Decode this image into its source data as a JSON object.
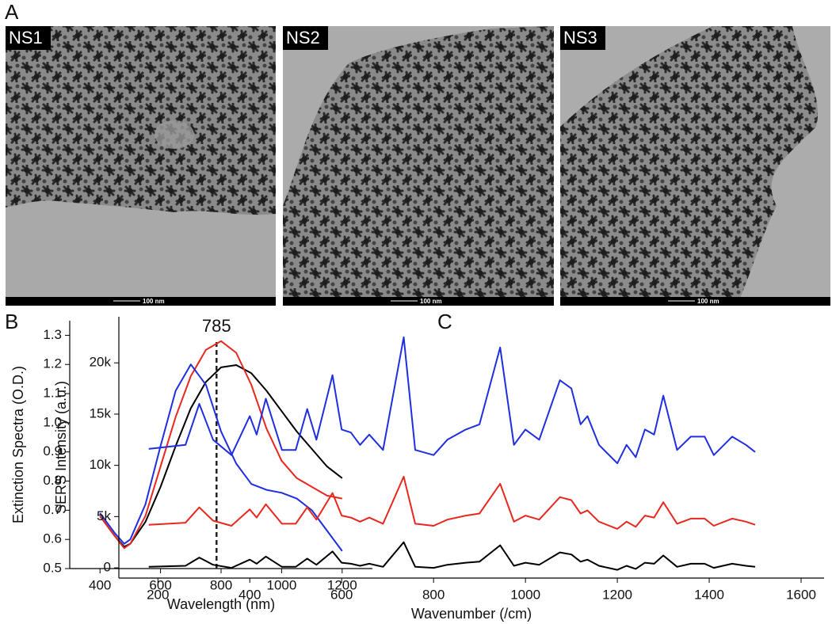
{
  "panel_labels": [
    "A",
    "B",
    "C"
  ],
  "images": [
    {
      "label": "NS1",
      "scale_bar": "100 nm"
    },
    {
      "label": "NS2",
      "scale_bar": "100 nm"
    },
    {
      "label": "NS3",
      "scale_bar": "100 nm"
    }
  ],
  "chart_data": [
    {
      "type": "line",
      "x_label": "Wavelength (nm)",
      "y_label": "Extinction Spectra (O.D.)",
      "x": [
        400,
        450,
        480,
        500,
        550,
        600,
        650,
        700,
        750,
        800,
        850,
        900,
        950,
        1000,
        1050,
        1100,
        1150,
        1200
      ],
      "series": [
        {
          "color": "#000000",
          "values": [
            0.68,
            0.61,
            0.575,
            0.585,
            0.66,
            0.78,
            0.92,
            1.05,
            1.14,
            1.19,
            1.198,
            1.17,
            1.11,
            1.04,
            0.97,
            0.91,
            0.85,
            0.81
          ]
        },
        {
          "color": "#e8281e",
          "values": [
            0.68,
            0.61,
            0.57,
            0.585,
            0.68,
            0.85,
            1.02,
            1.16,
            1.25,
            1.28,
            1.24,
            1.13,
            0.98,
            0.87,
            0.81,
            0.78,
            0.75,
            0.74
          ]
        },
        {
          "color": "#1f2ee0",
          "values": [
            0.69,
            0.62,
            0.585,
            0.6,
            0.72,
            0.92,
            1.11,
            1.2,
            1.13,
            0.97,
            0.86,
            0.79,
            0.77,
            0.76,
            0.74,
            0.7,
            0.63,
            0.56
          ]
        }
      ],
      "xlim": [
        300,
        1300
      ],
      "xticks": [
        400,
        600,
        800,
        1000,
        1200
      ],
      "ylim": [
        0.5,
        1.35
      ],
      "yticks": [
        0.5,
        0.6,
        0.7,
        0.8,
        0.9,
        {
          "value": 1,
          "label": "1.0"
        },
        1.1,
        1.2,
        1.3
      ],
      "annotations": [
        {
          "text": "785",
          "x": 785,
          "y": 1.28
        }
      ]
    },
    {
      "type": "line",
      "x_label": "Wavenumber (/cm)",
      "y_label": "SERS Intensity (a.u.)",
      "x": [
        180,
        260,
        290,
        320,
        360,
        400,
        415,
        435,
        470,
        500,
        525,
        545,
        580,
        600,
        620,
        640,
        660,
        690,
        735,
        760,
        800,
        830,
        870,
        900,
        945,
        975,
        1000,
        1030,
        1075,
        1100,
        1120,
        1135,
        1160,
        1200,
        1220,
        1240,
        1260,
        1280,
        1300,
        1330,
        1360,
        1390,
        1410,
        1450,
        1480,
        1500
      ],
      "series": [
        {
          "color": "#1f2ee0",
          "values": [
            11600,
            12000,
            16000,
            12500,
            11000,
            14800,
            13000,
            16500,
            11500,
            11500,
            15500,
            12500,
            18800,
            13500,
            13200,
            12000,
            13000,
            11500,
            22500,
            11500,
            11000,
            12500,
            13500,
            14000,
            21500,
            12000,
            13500,
            12500,
            18300,
            17500,
            14000,
            14800,
            12000,
            10200,
            12000,
            10800,
            13500,
            13000,
            16800,
            11500,
            12800,
            12800,
            11000,
            12800,
            12000,
            11300
          ]
        },
        {
          "color": "#e8281e",
          "values": [
            4200,
            4400,
            5900,
            4600,
            4100,
            5700,
            4900,
            6200,
            4300,
            4300,
            5900,
            4700,
            7300,
            5100,
            4900,
            4500,
            4900,
            4300,
            8900,
            4300,
            4100,
            4700,
            5100,
            5300,
            8200,
            4500,
            5100,
            4700,
            6900,
            6600,
            5300,
            5600,
            4500,
            3800,
            4500,
            4000,
            5100,
            4900,
            6400,
            4300,
            4800,
            4800,
            4100,
            4800,
            4500,
            4200
          ]
        },
        {
          "color": "#000000",
          "values": [
            100,
            200,
            1000,
            300,
            0,
            800,
            400,
            1100,
            100,
            100,
            900,
            300,
            1600,
            500,
            400,
            200,
            400,
            100,
            2500,
            100,
            0,
            300,
            500,
            600,
            2200,
            200,
            500,
            300,
            1500,
            1300,
            600,
            800,
            200,
            -200,
            200,
            -100,
            500,
            400,
            1200,
            100,
            400,
            400,
            0,
            400,
            200,
            100
          ]
        }
      ],
      "xlim": [
        115,
        1650
      ],
      "xticks": [
        200,
        400,
        600,
        800,
        1000,
        1200,
        1400,
        1600
      ],
      "ylim": [
        -1000,
        24500
      ],
      "yticks": [
        0,
        {
          "value": 5000,
          "label": "5k"
        },
        {
          "value": 10000,
          "label": "10k"
        },
        {
          "value": 15000,
          "label": "15k"
        },
        {
          "value": 20000,
          "label": "20k"
        }
      ]
    }
  ]
}
